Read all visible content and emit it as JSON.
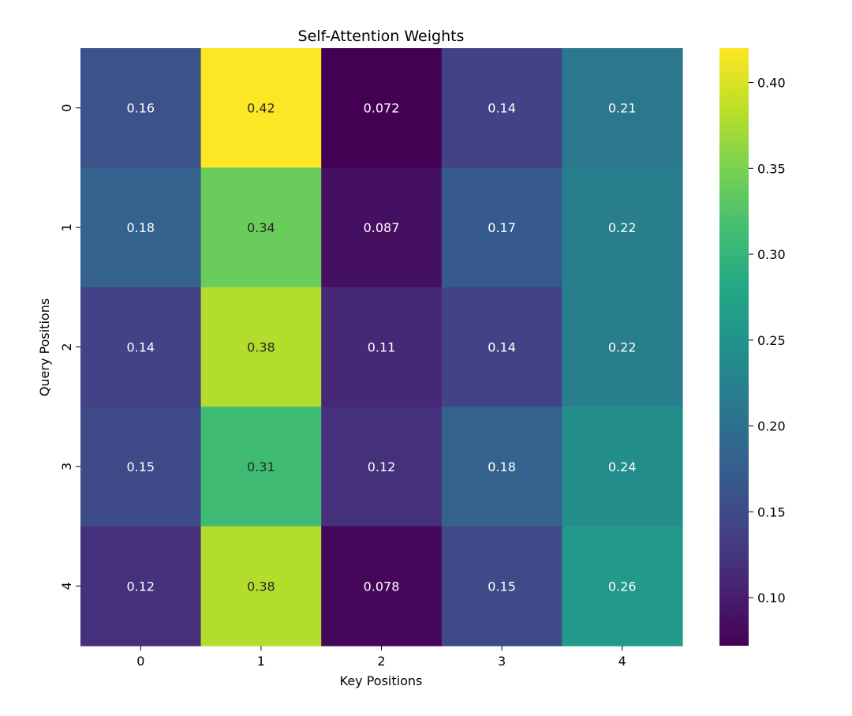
{
  "chart_data": {
    "type": "heatmap",
    "title": "Self-Attention Weights",
    "xlabel": "Key Positions",
    "ylabel": "Query Positions",
    "x_categories": [
      "0",
      "1",
      "2",
      "3",
      "4"
    ],
    "y_categories": [
      "0",
      "1",
      "2",
      "3",
      "4"
    ],
    "values": [
      [
        0.16,
        0.42,
        0.072,
        0.14,
        0.21
      ],
      [
        0.18,
        0.34,
        0.087,
        0.17,
        0.22
      ],
      [
        0.14,
        0.38,
        0.11,
        0.14,
        0.22
      ],
      [
        0.15,
        0.31,
        0.12,
        0.18,
        0.24
      ],
      [
        0.12,
        0.38,
        0.078,
        0.15,
        0.26
      ]
    ],
    "colormap": "viridis",
    "colorbar": {
      "range": [
        0.072,
        0.42
      ],
      "ticks": [
        0.1,
        0.15,
        0.2,
        0.25,
        0.3,
        0.35,
        0.4
      ],
      "tick_labels": [
        "0.10",
        "0.15",
        "0.20",
        "0.25",
        "0.30",
        "0.35",
        "0.40"
      ]
    },
    "annotations": true,
    "colors": {
      "viridis": [
        "#440154",
        "#482475",
        "#414487",
        "#355f8d",
        "#2a788e",
        "#21918c",
        "#22a884",
        "#44bf70",
        "#7ad151",
        "#bddf26",
        "#fde725"
      ]
    }
  }
}
